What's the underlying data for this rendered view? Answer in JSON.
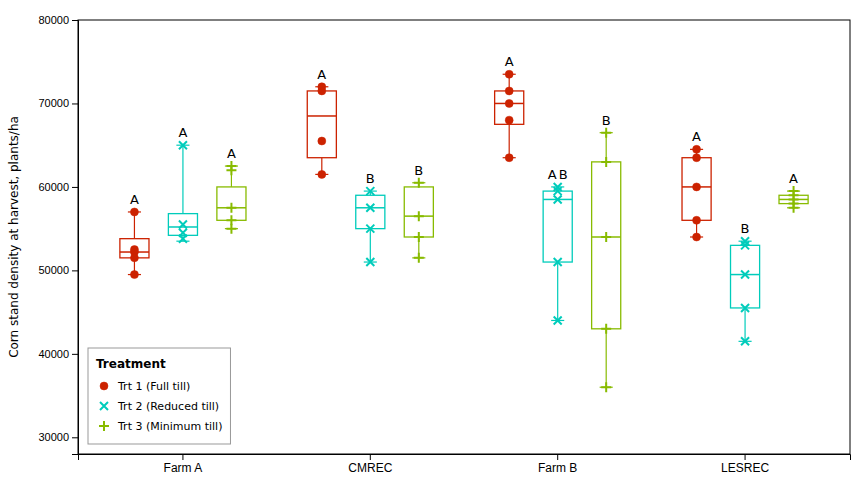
{
  "chart_data": {
    "type": "box",
    "categories": [
      "Farm A",
      "CMREC",
      "Farm B",
      "LESREC"
    ],
    "ylabel": "Corn stand density at harvest, plants/ha",
    "ylim": [
      28000,
      80000
    ],
    "yticks": [
      30000,
      40000,
      50000,
      60000,
      70000,
      80000
    ],
    "grid": false,
    "legend": "lower left",
    "legend_title": "Treatment",
    "series": [
      {
        "name": "Trt 1 (Full till)",
        "color": "#cc2200",
        "marker": "circle",
        "boxes": [
          {
            "median": 52200,
            "q1": 51500,
            "q3": 53800,
            "whislo": 49500,
            "whishi": 57000
          },
          {
            "median": 68500,
            "q1": 63500,
            "q3": 71500,
            "whislo": 61500,
            "whishi": 72000
          },
          {
            "median": 70000,
            "q1": 67500,
            "q3": 71500,
            "whislo": 63500,
            "whishi": 73500
          },
          {
            "median": 60000,
            "q1": 56000,
            "q3": 63500,
            "whislo": 54000,
            "whishi": 64500
          }
        ],
        "points": [
          [
            57000,
            52500,
            52200,
            51500,
            49500
          ],
          [
            72000,
            71500,
            65500,
            61500
          ],
          [
            73500,
            71500,
            70000,
            68000,
            63500
          ],
          [
            64500,
            63500,
            60000,
            56000,
            54000
          ]
        ],
        "labels": [
          [
            "A"
          ],
          [
            "A"
          ],
          [
            "A"
          ],
          [
            "A"
          ]
        ]
      },
      {
        "name": "Trt 2 (Reduced till)",
        "color": "#00ccbb",
        "marker": "x",
        "boxes": [
          {
            "median": 55200,
            "q1": 54200,
            "q3": 56800,
            "whislo": 53500,
            "whishi": 65000
          },
          {
            "median": 57500,
            "q1": 55000,
            "q3": 59000,
            "whislo": 51000,
            "whishi": 59500
          },
          {
            "median": 58500,
            "q1": 51000,
            "q3": 59500,
            "whislo": 44000,
            "whishi": 60000
          },
          {
            "median": 49500,
            "q1": 45500,
            "q3": 53000,
            "whislo": 41500,
            "whishi": 53500
          }
        ],
        "points": [
          [
            65000,
            55500,
            54500,
            53800
          ],
          [
            59500,
            57500,
            55000,
            51000
          ],
          [
            60000,
            59500,
            58500,
            51000,
            44000
          ],
          [
            53500,
            53000,
            49500,
            45500,
            41500
          ]
        ],
        "labels": [
          [
            "A"
          ],
          [
            "B"
          ],
          [
            "A",
            "B"
          ],
          [
            "B"
          ]
        ]
      },
      {
        "name": "Trt 3 (Minimum till)",
        "color": "#88bb00",
        "marker": "plus",
        "boxes": [
          {
            "median": 57500,
            "q1": 56000,
            "q3": 60000,
            "whislo": 55000,
            "whishi": 62500
          },
          {
            "median": 56500,
            "q1": 54000,
            "q3": 60000,
            "whislo": 51500,
            "whishi": 60500
          },
          {
            "median": 54000,
            "q1": 43000,
            "q3": 63000,
            "whislo": 36000,
            "whishi": 66500
          },
          {
            "median": 58500,
            "q1": 58000,
            "q3": 59000,
            "whislo": 57500,
            "whishi": 59500
          }
        ],
        "points": [
          [
            62500,
            62000,
            57500,
            56000,
            55000
          ],
          [
            60500,
            56500,
            54000,
            51500
          ],
          [
            66500,
            63000,
            54000,
            43000,
            36000
          ],
          [
            59500,
            59000,
            58500,
            58000,
            57500
          ]
        ],
        "labels": [
          [
            "A"
          ],
          [
            "B"
          ],
          [
            "B"
          ],
          [
            "A"
          ]
        ]
      }
    ]
  }
}
